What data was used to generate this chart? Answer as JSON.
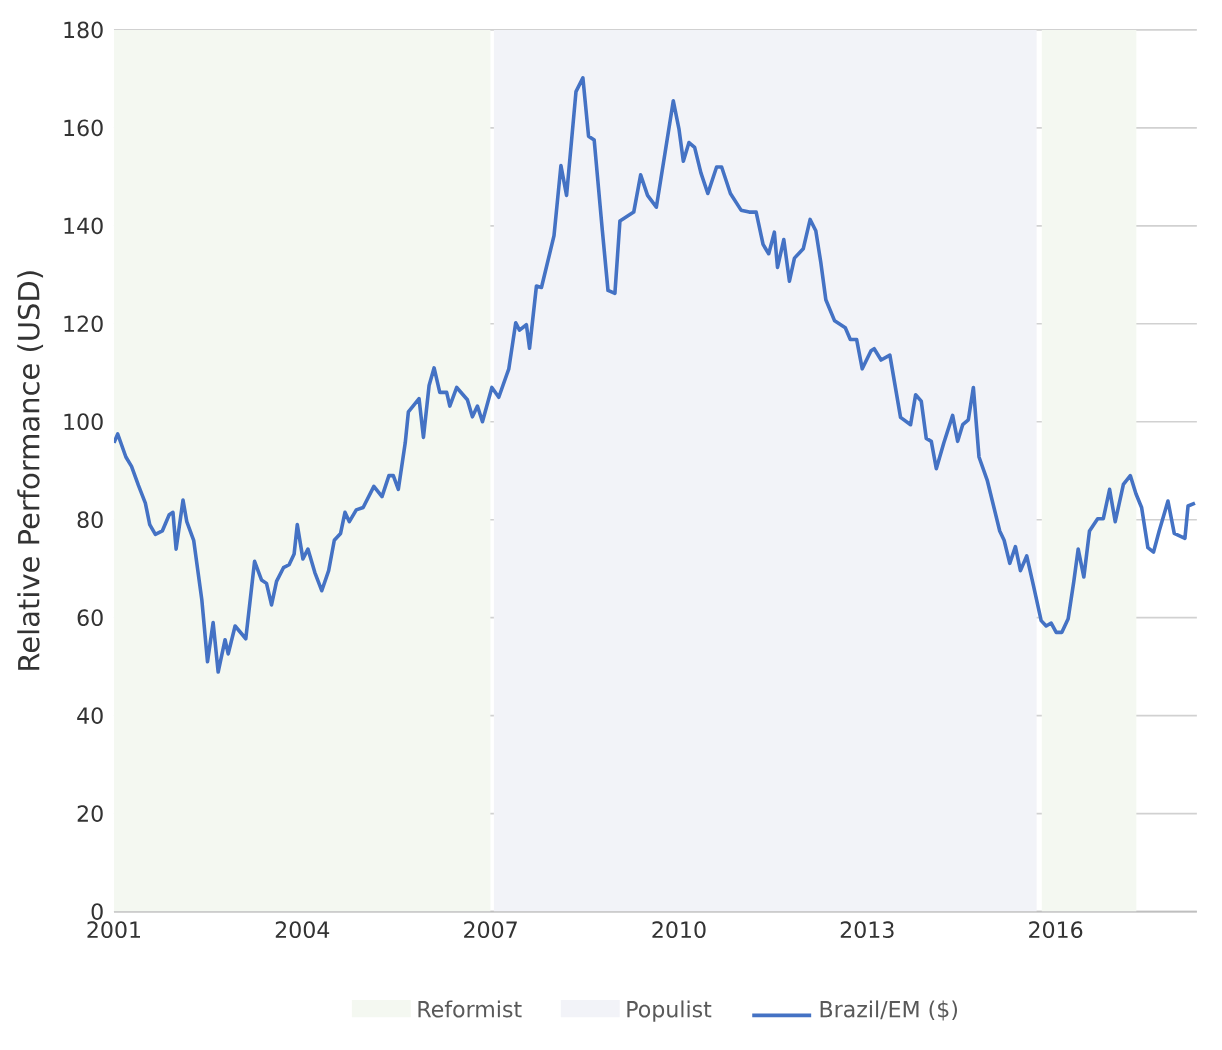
{
  "chart_data": {
    "type": "line",
    "ylabel": "Relative Performance (USD)",
    "x": [
      2001.0,
      2001.06,
      2001.19,
      2001.28,
      2001.39,
      2001.5,
      2001.57,
      2001.66,
      2001.77,
      2001.88,
      2001.94,
      2001.99,
      2002.1,
      2002.16,
      2002.27,
      2002.4,
      2002.49,
      2002.58,
      2002.66,
      2002.77,
      2002.82,
      2002.93,
      2003.1,
      2003.24,
      2003.35,
      2003.43,
      2003.51,
      2003.59,
      2003.7,
      2003.79,
      2003.87,
      2003.92,
      2004.01,
      2004.09,
      2004.2,
      2004.31,
      2004.42,
      2004.51,
      2004.61,
      2004.68,
      2004.75,
      2004.86,
      2004.97,
      2005.14,
      2005.27,
      2005.38,
      2005.45,
      2005.53,
      2005.64,
      2005.69,
      2005.86,
      2005.93,
      2006.02,
      2006.1,
      2006.19,
      2006.3,
      2006.35,
      2006.46,
      2006.63,
      2006.71,
      2006.79,
      2006.87,
      2007.02,
      2007.13,
      2007.29,
      2007.4,
      2007.46,
      2007.57,
      2007.62,
      2007.73,
      2007.81,
      2008.01,
      2008.12,
      2008.21,
      2008.36,
      2008.47,
      2008.56,
      2008.65,
      2008.78,
      2008.87,
      2008.98,
      2009.06,
      2009.17,
      2009.28,
      2009.39,
      2009.5,
      2009.64,
      2009.78,
      2009.91,
      2010.0,
      2010.07,
      2010.16,
      2010.25,
      2010.35,
      2010.46,
      2010.6,
      2010.68,
      2010.82,
      2010.99,
      2011.12,
      2011.23,
      2011.34,
      2011.43,
      2011.52,
      2011.57,
      2011.67,
      2011.76,
      2011.84,
      2011.98,
      2012.09,
      2012.18,
      2012.26,
      2012.34,
      2012.48,
      2012.65,
      2012.73,
      2012.83,
      2012.92,
      2013.06,
      2013.11,
      2013.22,
      2013.36,
      2013.53,
      2013.69,
      2013.77,
      2013.86,
      2013.94,
      2014.02,
      2014.1,
      2014.22,
      2014.36,
      2014.44,
      2014.52,
      2014.61,
      2014.69,
      2014.78,
      2014.91,
      2015.11,
      2015.18,
      2015.27,
      2015.36,
      2015.44,
      2015.54,
      2015.65,
      2015.77,
      2015.85,
      2015.93,
      2016.01,
      2016.1,
      2016.2,
      2016.29,
      2016.36,
      2016.45,
      2016.54,
      2016.67,
      2016.76,
      2016.86,
      2016.95,
      2017.08,
      2017.19,
      2017.28,
      2017.37,
      2017.47,
      2017.56,
      2017.65,
      2017.79,
      2017.89,
      2018.06,
      2018.11,
      2018.22
    ],
    "series": [
      {
        "name": "Brazil/EM ($)",
        "color": "#4472c4",
        "values": [
          95.7,
          97.5,
          92.8,
          90.9,
          87,
          83.4,
          79,
          77,
          77.7,
          81,
          81.5,
          74,
          84,
          79.6,
          75.8,
          63.6,
          51,
          59,
          48.9,
          55.5,
          52.6,
          58.3,
          55.7,
          71.5,
          67.7,
          67,
          62.6,
          67.4,
          70.2,
          70.8,
          73,
          79,
          72,
          74,
          69.2,
          65.5,
          69.6,
          75.8,
          77.2,
          81.5,
          79.6,
          82,
          82.5,
          86.8,
          84.7,
          89,
          89,
          86.2,
          95.7,
          102,
          104.7,
          96.8,
          107.4,
          111,
          106,
          106,
          103.2,
          107,
          104.5,
          101,
          103.2,
          100,
          107,
          105,
          110.8,
          120.2,
          118.7,
          119.8,
          115,
          127.7,
          127.4,
          138,
          152.3,
          146.2,
          167.4,
          170.2,
          158.3,
          157.5,
          139,
          126.8,
          126.2,
          141,
          141.9,
          142.8,
          150.4,
          146.2,
          143.8,
          155,
          165.5,
          159.8,
          153.2,
          157,
          156,
          150.8,
          146.6,
          152,
          152,
          146.6,
          143.2,
          142.8,
          142.8,
          136.2,
          134.3,
          138.7,
          131.5,
          137.2,
          128.7,
          133.4,
          135.3,
          141.3,
          139,
          132.5,
          124.9,
          120.6,
          119.2,
          116.8,
          116.8,
          110.8,
          114.5,
          114.9,
          112.6,
          113.6,
          100.9,
          99.4,
          105.5,
          104.2,
          96.6,
          96,
          90.4,
          95.7,
          101.3,
          96,
          99.4,
          100.4,
          107,
          92.8,
          88.1,
          77.7,
          75.8,
          71.1,
          74.5,
          69.6,
          72.6,
          66.4,
          59.4,
          58.3,
          58.9,
          57,
          57,
          59.8,
          67.4,
          74,
          68.3,
          77.7,
          80.2,
          80.2,
          86.2,
          79.6,
          87.2,
          89,
          85.3,
          82.5,
          74.3,
          73.4,
          77.7,
          83.8,
          77.2,
          76.2,
          82.8,
          83.4
        ]
      }
    ],
    "bands": [
      {
        "axis": "x",
        "from": 2001,
        "to": 2007.0,
        "label": "Reformist",
        "color": "#f4f8f1"
      },
      {
        "axis": "x",
        "from": 2007.05,
        "to": 2015.7,
        "label": "Populist",
        "color": "#f2f3f8"
      },
      {
        "axis": "x",
        "from": 2015.78,
        "to": 2017.29,
        "color": "#f4f8f1"
      }
    ],
    "xlim": [
      2001,
      2018.25
    ],
    "xticks": [
      2001,
      2004,
      2007,
      2010,
      2013,
      2016
    ],
    "ylim": [
      0,
      180
    ],
    "yticks": [
      0,
      20,
      40,
      60,
      80,
      100,
      120,
      140,
      160,
      180
    ],
    "grid": "y",
    "legend": "bottom",
    "marker": "none",
    "line_style": "solid"
  }
}
